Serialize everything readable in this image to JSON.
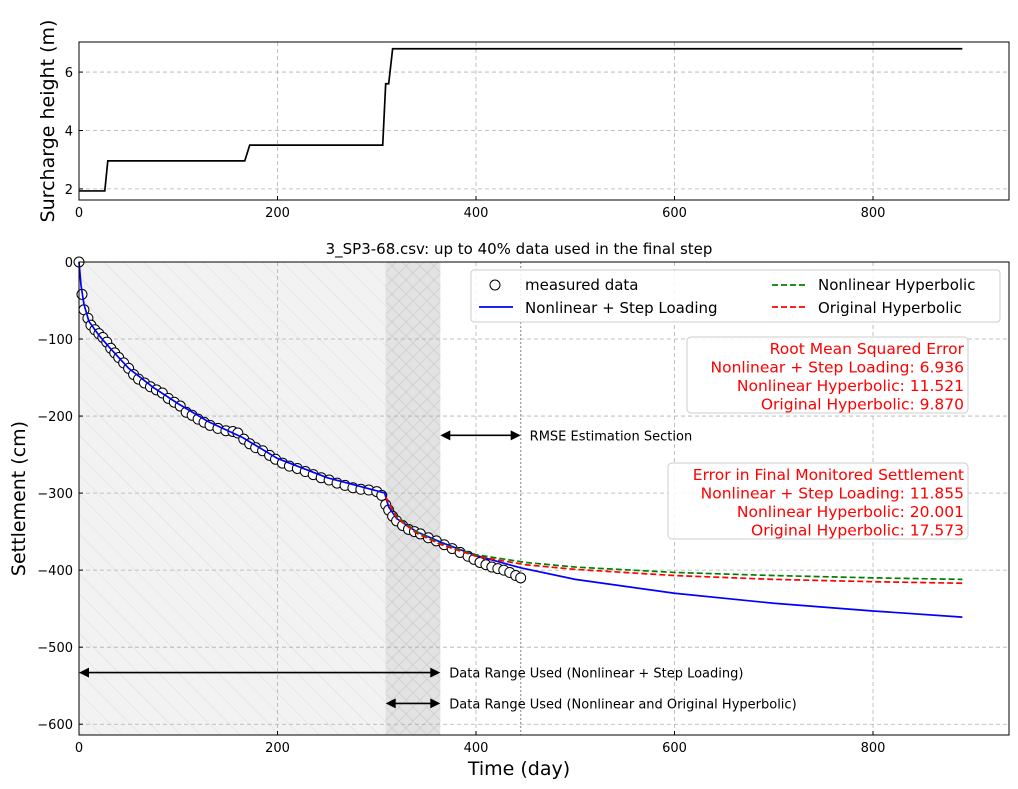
{
  "chart_data": [
    {
      "type": "line",
      "ylabel": "Surcharge height (m)",
      "xlim": [
        0,
        937
      ],
      "ylim": [
        1.62,
        7.03
      ],
      "xticks": [
        0,
        200,
        400,
        600,
        800
      ],
      "yticks": [
        2,
        4,
        6
      ],
      "grid": true,
      "series": [
        {
          "color": "#000000",
          "x": [
            0,
            26,
            29,
            167,
            172,
            306,
            309,
            312,
            316,
            890
          ],
          "y": [
            1.93,
            1.93,
            2.96,
            2.96,
            3.5,
            3.5,
            5.6,
            5.6,
            6.8,
            6.8
          ]
        }
      ]
    },
    {
      "type": "line",
      "title": "3_SP3-68.csv: up to 40% data used in the final step",
      "xlabel": "Time (day)",
      "ylabel": "Settlement (cm)",
      "xlim": [
        0,
        937
      ],
      "ylim": [
        -614,
        0
      ],
      "xticks": [
        0,
        200,
        400,
        600,
        800
      ],
      "yticks": [
        0,
        -100,
        -200,
        -300,
        -400,
        -500,
        -600
      ],
      "grid": true,
      "legend": {
        "placement": "top-right",
        "entries": [
          "measured data",
          "Nonlinear + Step Loading",
          "Nonlinear Hyperbolic",
          "Original Hyperbolic"
        ]
      },
      "shaded_regions": [
        {
          "x": [
            0,
            364
          ],
          "color": "#f2f2f2"
        },
        {
          "x": [
            309,
            364
          ],
          "color": "#e3e3e3"
        }
      ],
      "vline": 445,
      "measured": {
        "name": "measured data",
        "x": [
          0,
          3,
          5,
          9,
          12,
          16,
          20,
          24,
          28,
          32,
          36,
          40,
          45,
          50,
          55,
          60,
          66,
          72,
          78,
          84,
          90,
          96,
          102,
          108,
          114,
          120,
          126,
          132,
          140,
          148,
          155,
          160,
          166,
          172,
          178,
          185,
          192,
          198,
          205,
          212,
          220,
          228,
          236,
          244,
          252,
          260,
          268,
          276,
          284,
          292,
          300,
          305,
          309,
          312,
          316,
          320,
          326,
          332,
          338,
          344,
          352,
          360,
          368,
          376,
          384,
          392,
          398,
          404,
          410,
          416,
          422,
          428,
          434,
          440,
          445
        ],
        "y": [
          0,
          -42,
          -62,
          -73,
          -82,
          -88,
          -93,
          -98,
          -104,
          -112,
          -118,
          -124,
          -131,
          -138,
          -146,
          -152,
          -157,
          -162,
          -166,
          -170,
          -177,
          -182,
          -187,
          -195,
          -199,
          -204,
          -208,
          -212,
          -216,
          -219,
          -220,
          -222,
          -230,
          -236,
          -241,
          -245,
          -251,
          -256,
          -261,
          -265,
          -268,
          -272,
          -276,
          -280,
          -283,
          -287,
          -290,
          -293,
          -295,
          -296,
          -298,
          -303,
          -315,
          -322,
          -330,
          -336,
          -342,
          -347,
          -350,
          -353,
          -358,
          -362,
          -367,
          -372,
          -377,
          -382,
          -386,
          -390,
          -393,
          -396,
          -398,
          -400,
          -403,
          -407,
          -410
        ]
      },
      "series": [
        {
          "name": "Nonlinear + Step Loading",
          "color": "#0000ff",
          "dash": false,
          "x": [
            0,
            2,
            5,
            10,
            20,
            30,
            50,
            75,
            100,
            130,
            165,
            200,
            250,
            300,
            308,
            312,
            320,
            340,
            365,
            400,
            445,
            500,
            600,
            700,
            800,
            890
          ],
          "y": [
            0,
            -30,
            -55,
            -77,
            -95,
            -110,
            -138,
            -163,
            -184,
            -207,
            -228,
            -255,
            -280,
            -297,
            -300,
            -318,
            -333,
            -350,
            -364,
            -381,
            -397,
            -412,
            -430,
            -443,
            -453,
            -461
          ]
        },
        {
          "name": "Nonlinear Hyperbolic",
          "color": "#008000",
          "dash": true,
          "x": [
            309,
            320,
            340,
            365,
            400,
            450,
            500,
            600,
            700,
            800,
            890
          ],
          "y": [
            -305,
            -330,
            -350,
            -366,
            -380,
            -390,
            -396,
            -403,
            -407,
            -410,
            -412
          ]
        },
        {
          "name": "Original Hyperbolic",
          "color": "#ff0000",
          "dash": true,
          "x": [
            309,
            320,
            340,
            365,
            400,
            450,
            500,
            600,
            700,
            800,
            890
          ],
          "y": [
            -305,
            -332,
            -352,
            -367,
            -382,
            -393,
            -399,
            -407,
            -412,
            -415,
            -417
          ]
        }
      ],
      "annotations": [
        {
          "text": "RMSE Estimation Section",
          "x": [
            364,
            445
          ],
          "y": -225
        },
        {
          "text": "Data Range Used (Nonlinear + Step Loading)",
          "x": [
            0,
            364
          ],
          "y": -533
        },
        {
          "text": "Data Range Used (Nonlinear and Original Hyperbolic)",
          "x": [
            309,
            364
          ],
          "y": -573
        }
      ],
      "boxes": [
        {
          "lines": [
            "Root Mean Squared Error",
            "Nonlinear + Step Loading: 6.936",
            "Nonlinear Hyperbolic: 11.521",
            "Original Hyperbolic: 9.870"
          ]
        },
        {
          "lines": [
            "Error in Final Monitored Settlement",
            "Nonlinear + Step Loading: 11.855",
            "Nonlinear Hyperbolic: 20.001",
            "Original Hyperbolic: 17.573"
          ]
        }
      ]
    }
  ]
}
